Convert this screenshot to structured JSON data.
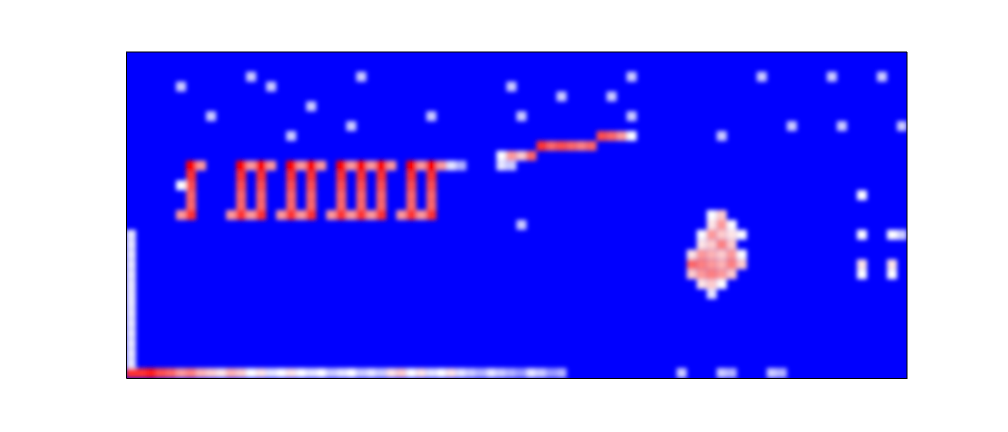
{
  "chart_data": {
    "type": "heatmap",
    "xlim": [
      0,
      78
    ],
    "ylim": [
      0,
      33
    ],
    "tick_labels": false,
    "zlim": [
      0,
      1
    ],
    "cells": [
      [
        0,
        0,
        0.9
      ],
      [
        0,
        1,
        0.45
      ],
      [
        0,
        2,
        0.45
      ],
      [
        0,
        3,
        0.45
      ],
      [
        0,
        4,
        0.45
      ],
      [
        0,
        5,
        0.45
      ],
      [
        0,
        6,
        0.45
      ],
      [
        0,
        7,
        0.45
      ],
      [
        0,
        8,
        0.45
      ],
      [
        0,
        9,
        0.45
      ],
      [
        0,
        10,
        0.45
      ],
      [
        0,
        11,
        0.45
      ],
      [
        0,
        12,
        0.45
      ],
      [
        0,
        13,
        0.45
      ],
      [
        0,
        14,
        0.45
      ],
      [
        1,
        0,
        0.9
      ],
      [
        2,
        0,
        0.95
      ],
      [
        3,
        0,
        0.85
      ],
      [
        4,
        0,
        0.8
      ],
      [
        5,
        0,
        0.7
      ],
      [
        6,
        0,
        0.75
      ],
      [
        7,
        0,
        0.65
      ],
      [
        8,
        0,
        0.6
      ],
      [
        9,
        0,
        0.55
      ],
      [
        10,
        0,
        0.65
      ],
      [
        11,
        0,
        0.6
      ],
      [
        12,
        0,
        0.5
      ],
      [
        13,
        0,
        0.55
      ],
      [
        14,
        0,
        0.45
      ],
      [
        15,
        0,
        0.5
      ],
      [
        16,
        0,
        0.55
      ],
      [
        17,
        0,
        0.5
      ],
      [
        18,
        0,
        0.45
      ],
      [
        19,
        0,
        0.5
      ],
      [
        20,
        0,
        0.4
      ],
      [
        21,
        0,
        0.45
      ],
      [
        22,
        0,
        0.5
      ],
      [
        23,
        0,
        0.4
      ],
      [
        24,
        0,
        0.45
      ],
      [
        25,
        0,
        0.4
      ],
      [
        26,
        0,
        0.55
      ],
      [
        27,
        0,
        0.6
      ],
      [
        28,
        0,
        0.5
      ],
      [
        29,
        0,
        0.55
      ],
      [
        30,
        0,
        0.45
      ],
      [
        31,
        0,
        0.5
      ],
      [
        32,
        0,
        0.55
      ],
      [
        33,
        0,
        0.45
      ],
      [
        34,
        0,
        0.4
      ],
      [
        35,
        0,
        0.35
      ],
      [
        36,
        0,
        0.45
      ],
      [
        37,
        0,
        0.4
      ],
      [
        38,
        0,
        0.35
      ],
      [
        39,
        0,
        0.3
      ],
      [
        40,
        0,
        0.45
      ],
      [
        41,
        0,
        0.4
      ],
      [
        42,
        0,
        0.3
      ],
      [
        43,
        0,
        0.35
      ],
      [
        55,
        0,
        0.4
      ],
      [
        59,
        0,
        0.4
      ],
      [
        60,
        0,
        0.35
      ],
      [
        64,
        0,
        0.4
      ],
      [
        65,
        0,
        0.35
      ],
      [
        6,
        16,
        0.9
      ],
      [
        6,
        17,
        0.8
      ],
      [
        6,
        18,
        0.8
      ],
      [
        6,
        19,
        0.85
      ],
      [
        6,
        20,
        0.9
      ],
      [
        6,
        21,
        1.0
      ],
      [
        7,
        21,
        0.7
      ],
      [
        5,
        16,
        0.7
      ],
      [
        5,
        19,
        0.5
      ],
      [
        11,
        16,
        0.9
      ],
      [
        11,
        17,
        0.8
      ],
      [
        11,
        18,
        0.8
      ],
      [
        11,
        19,
        0.85
      ],
      [
        11,
        20,
        0.9
      ],
      [
        11,
        21,
        1.0
      ],
      [
        12,
        21,
        0.7
      ],
      [
        10,
        16,
        0.7
      ],
      [
        13,
        16,
        0.9
      ],
      [
        13,
        17,
        0.8
      ],
      [
        13,
        18,
        0.8
      ],
      [
        13,
        19,
        0.85
      ],
      [
        13,
        20,
        0.9
      ],
      [
        13,
        21,
        1.0
      ],
      [
        14,
        21,
        0.7
      ],
      [
        12,
        16,
        0.7
      ],
      [
        16,
        16,
        0.9
      ],
      [
        16,
        17,
        0.8
      ],
      [
        16,
        18,
        0.8
      ],
      [
        16,
        19,
        0.85
      ],
      [
        16,
        20,
        0.9
      ],
      [
        16,
        21,
        1.0
      ],
      [
        17,
        21,
        0.7
      ],
      [
        15,
        16,
        0.7
      ],
      [
        18,
        16,
        0.9
      ],
      [
        18,
        17,
        0.8
      ],
      [
        18,
        18,
        0.8
      ],
      [
        18,
        19,
        0.85
      ],
      [
        18,
        20,
        0.9
      ],
      [
        18,
        21,
        1.0
      ],
      [
        19,
        21,
        0.7
      ],
      [
        17,
        16,
        0.7
      ],
      [
        21,
        16,
        0.9
      ],
      [
        21,
        17,
        0.8
      ],
      [
        21,
        18,
        0.8
      ],
      [
        21,
        19,
        0.85
      ],
      [
        21,
        20,
        0.9
      ],
      [
        21,
        21,
        1.0
      ],
      [
        22,
        21,
        0.7
      ],
      [
        20,
        16,
        0.7
      ],
      [
        23,
        16,
        0.9
      ],
      [
        23,
        17,
        0.8
      ],
      [
        23,
        18,
        0.8
      ],
      [
        23,
        19,
        0.85
      ],
      [
        23,
        20,
        0.9
      ],
      [
        23,
        21,
        1.0
      ],
      [
        24,
        21,
        0.7
      ],
      [
        22,
        16,
        0.7
      ],
      [
        25,
        16,
        0.9
      ],
      [
        25,
        17,
        0.8
      ],
      [
        25,
        18,
        0.8
      ],
      [
        25,
        19,
        0.85
      ],
      [
        25,
        20,
        0.9
      ],
      [
        25,
        21,
        1.0
      ],
      [
        26,
        21,
        0.7
      ],
      [
        24,
        16,
        0.7
      ],
      [
        28,
        16,
        0.9
      ],
      [
        28,
        17,
        0.8
      ],
      [
        28,
        18,
        0.8
      ],
      [
        28,
        19,
        0.85
      ],
      [
        28,
        20,
        0.9
      ],
      [
        28,
        21,
        1.0
      ],
      [
        29,
        21,
        0.7
      ],
      [
        27,
        16,
        0.7
      ],
      [
        30,
        16,
        0.9
      ],
      [
        30,
        17,
        0.8
      ],
      [
        30,
        18,
        0.8
      ],
      [
        30,
        19,
        0.85
      ],
      [
        30,
        20,
        0.9
      ],
      [
        30,
        21,
        1.0
      ],
      [
        31,
        21,
        0.7
      ],
      [
        29,
        16,
        0.7
      ],
      [
        32,
        21,
        0.45
      ],
      [
        33,
        21,
        0.35
      ],
      [
        37,
        22,
        0.5
      ],
      [
        38,
        22,
        0.7
      ],
      [
        39,
        22,
        0.6
      ],
      [
        40,
        22,
        0.8
      ],
      [
        41,
        23,
        0.9
      ],
      [
        42,
        23,
        0.8
      ],
      [
        43,
        23,
        0.85
      ],
      [
        44,
        23,
        0.8
      ],
      [
        45,
        23,
        0.75
      ],
      [
        46,
        23,
        0.8
      ],
      [
        47,
        24,
        0.85
      ],
      [
        48,
        24,
        0.8
      ],
      [
        49,
        24,
        0.7
      ],
      [
        50,
        24,
        0.5
      ],
      [
        37,
        21,
        0.45
      ],
      [
        38,
        21,
        0.4
      ],
      [
        58,
        16,
        0.5
      ],
      [
        59,
        16,
        0.6
      ],
      [
        58,
        15,
        0.55
      ],
      [
        59,
        15,
        0.7
      ],
      [
        60,
        15,
        0.5
      ],
      [
        57,
        14,
        0.5
      ],
      [
        58,
        14,
        0.7
      ],
      [
        59,
        14,
        0.6
      ],
      [
        60,
        14,
        0.55
      ],
      [
        61,
        14,
        0.5
      ],
      [
        57,
        13,
        0.55
      ],
      [
        58,
        13,
        0.6
      ],
      [
        59,
        13,
        0.75
      ],
      [
        60,
        13,
        0.6
      ],
      [
        56,
        12,
        0.55
      ],
      [
        57,
        12,
        0.7
      ],
      [
        58,
        12,
        0.65
      ],
      [
        59,
        12,
        0.6
      ],
      [
        60,
        12,
        0.7
      ],
      [
        61,
        12,
        0.5
      ],
      [
        56,
        11,
        0.8
      ],
      [
        57,
        11,
        0.75
      ],
      [
        58,
        11,
        0.7
      ],
      [
        59,
        11,
        0.65
      ],
      [
        60,
        11,
        0.75
      ],
      [
        61,
        11,
        0.6
      ],
      [
        56,
        10,
        0.6
      ],
      [
        57,
        10,
        0.7
      ],
      [
        58,
        10,
        0.75
      ],
      [
        59,
        10,
        0.7
      ],
      [
        60,
        10,
        0.6
      ],
      [
        57,
        9,
        0.55
      ],
      [
        58,
        9,
        0.6
      ],
      [
        59,
        9,
        0.5
      ],
      [
        58,
        8,
        0.45
      ],
      [
        73,
        18,
        0.5
      ],
      [
        73,
        14,
        0.5
      ],
      [
        73,
        11,
        0.55
      ],
      [
        73,
        10,
        0.5
      ],
      [
        76,
        14,
        0.5
      ],
      [
        76,
        11,
        0.55
      ],
      [
        76,
        10,
        0.5
      ],
      [
        77,
        14,
        0.45
      ],
      [
        5,
        29,
        0.4
      ],
      [
        12,
        30,
        0.4
      ],
      [
        14,
        29,
        0.4
      ],
      [
        23,
        30,
        0.4
      ],
      [
        18,
        27,
        0.4
      ],
      [
        16,
        24,
        0.4
      ],
      [
        22,
        25,
        0.4
      ],
      [
        38,
        29,
        0.4
      ],
      [
        39,
        26,
        0.4
      ],
      [
        43,
        28,
        0.4
      ],
      [
        48,
        28,
        0.4
      ],
      [
        50,
        30,
        0.4
      ],
      [
        50,
        26,
        0.4
      ],
      [
        59,
        24,
        0.4
      ],
      [
        63,
        30,
        0.4
      ],
      [
        66,
        25,
        0.4
      ],
      [
        71,
        25,
        0.4
      ],
      [
        75,
        30,
        0.4
      ],
      [
        77,
        25,
        0.4
      ],
      [
        39,
        15,
        0.4
      ],
      [
        77,
        14,
        0.4
      ],
      [
        70,
        30,
        0.4
      ],
      [
        30,
        26,
        0.4
      ],
      [
        8,
        26,
        0.4
      ]
    ]
  }
}
